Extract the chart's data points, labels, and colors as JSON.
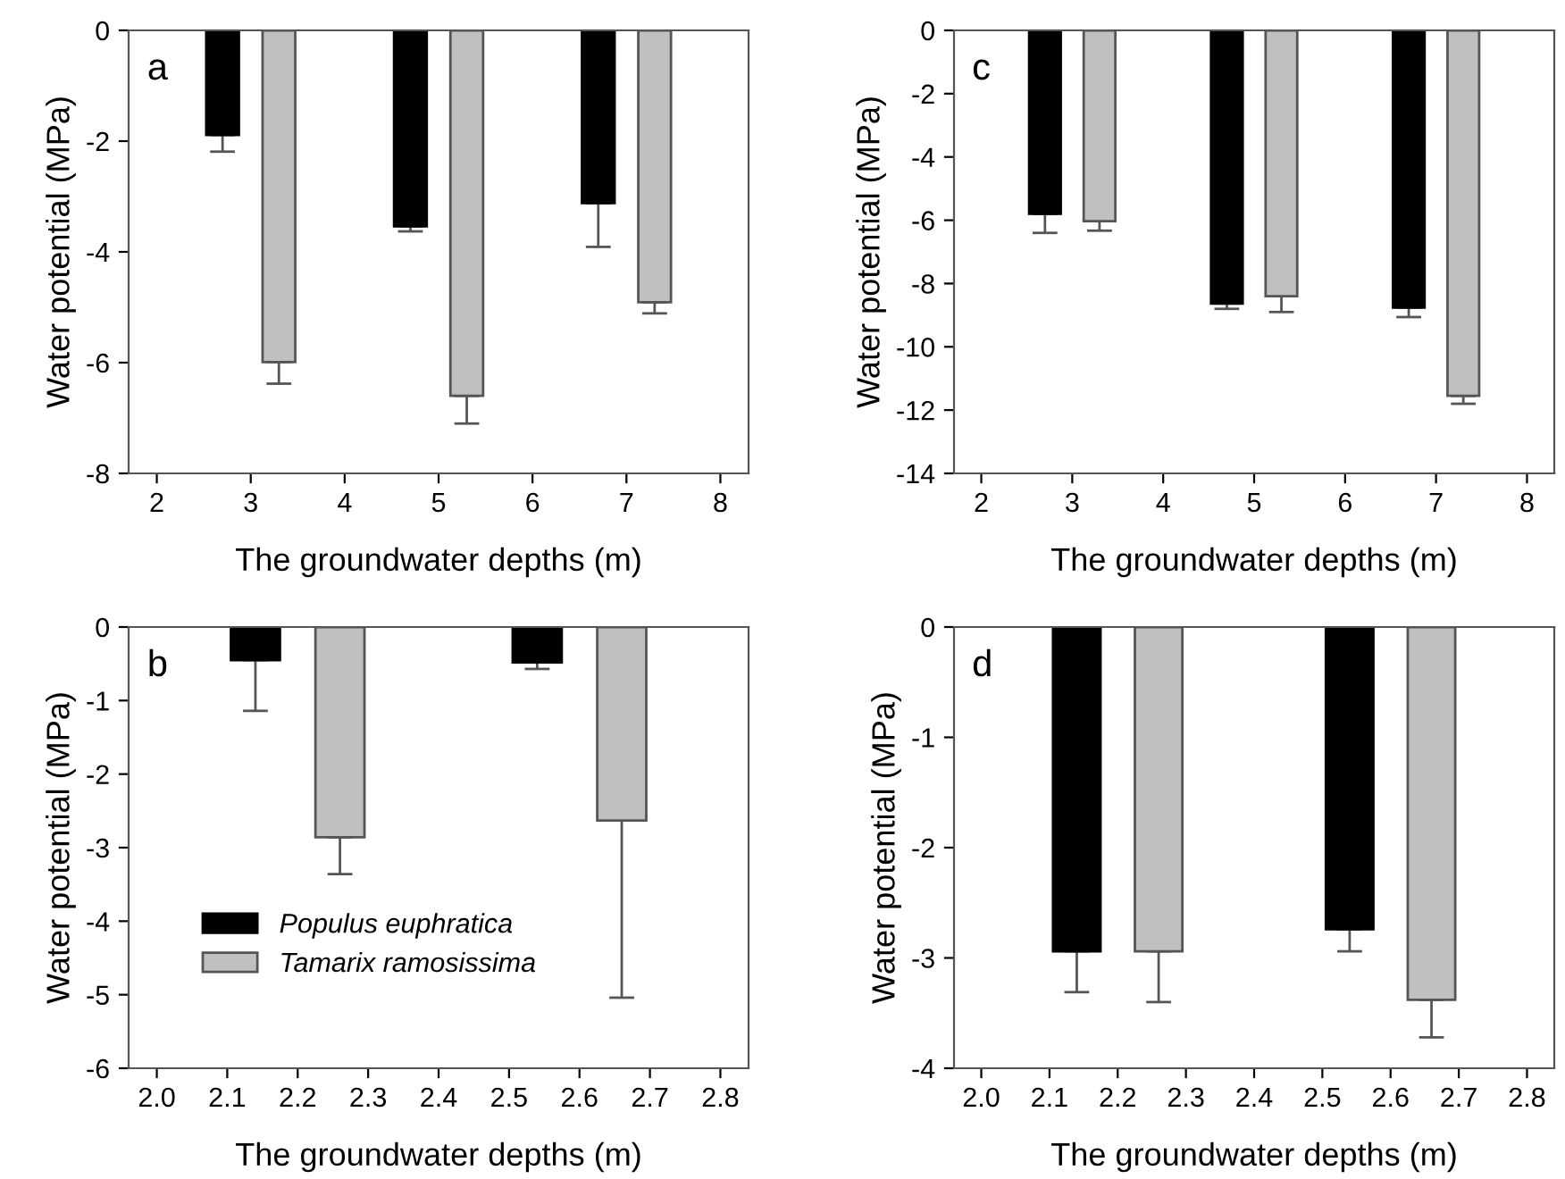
{
  "chart_data": [
    {
      "type": "bar",
      "annotations": [
        "a"
      ],
      "xlabel": "The groundwater depths (m)",
      "ylabel": "Water potential (MPa)",
      "xlim": [
        1.7,
        8.3
      ],
      "xticks": [
        2,
        3,
        4,
        5,
        6,
        7,
        8
      ],
      "ylim": [
        -8,
        0
      ],
      "yticks": [
        0,
        -2,
        -4,
        -6,
        -8
      ],
      "grid": false,
      "legend": false,
      "series": [
        {
          "color": "#000000",
          "x": [
            2.7,
            4.7,
            6.7
          ],
          "values": [
            -1.89,
            -3.54,
            -3.12
          ],
          "errors": [
            [
              -2.19,
              -1.89
            ],
            [
              -3.63,
              -3.54
            ],
            [
              -3.91,
              -3.12
            ]
          ]
        },
        {
          "color": "#c0c0c0",
          "x": [
            3.3,
            5.3,
            7.3
          ],
          "values": [
            -5.99,
            -6.6,
            -4.91
          ],
          "errors": [
            [
              -6.38,
              -5.99
            ],
            [
              -7.1,
              -6.6
            ],
            [
              -5.11,
              -4.91
            ]
          ]
        }
      ]
    },
    {
      "type": "bar",
      "annotations": [
        "c"
      ],
      "xlabel": "The groundwater depths (m)",
      "ylabel": "Water potential (MPa)",
      "xlim": [
        1.7,
        8.3
      ],
      "xticks": [
        2,
        3,
        4,
        5,
        6,
        7,
        8
      ],
      "ylim": [
        -14,
        0
      ],
      "yticks": [
        0,
        -2,
        -4,
        -6,
        -8,
        -10,
        -12,
        -14
      ],
      "grid": false,
      "legend": false,
      "series": [
        {
          "color": "#000000",
          "x": [
            2.7,
            4.7,
            6.7
          ],
          "values": [
            -5.8,
            -8.63,
            -8.76
          ],
          "errors": [
            [
              -6.4,
              -5.8
            ],
            [
              -8.8,
              -8.63
            ],
            [
              -9.06,
              -8.76
            ]
          ]
        },
        {
          "color": "#c0c0c0",
          "x": [
            3.3,
            5.3,
            7.3
          ],
          "values": [
            -6.03,
            -8.4,
            -11.55
          ],
          "errors": [
            [
              -6.33,
              -6.03
            ],
            [
              -8.9,
              -8.4
            ],
            [
              -11.8,
              -11.55
            ]
          ]
        }
      ]
    },
    {
      "type": "bar",
      "annotations": [
        "b"
      ],
      "xlabel": "The groundwater depths (m)",
      "ylabel": "Water potential (MPa)",
      "xlim": [
        1.96,
        2.84
      ],
      "xticks": [
        {
          "value": 2.0,
          "label": "2.0"
        },
        2.1,
        2.2,
        2.3,
        2.4,
        2.5,
        2.6,
        2.7,
        2.8
      ],
      "ylim": [
        -6,
        0
      ],
      "yticks": [
        0,
        -1,
        -2,
        -3,
        -4,
        -5,
        -6
      ],
      "grid": false,
      "legend": "bottom left",
      "series": [
        {
          "name": "Populus euphratica",
          "color": "#000000",
          "x": [
            2.14,
            2.54
          ],
          "values": [
            -0.45,
            -0.48
          ],
          "errors": [
            [
              -1.14,
              -0.45
            ],
            [
              -0.57,
              -0.48
            ]
          ]
        },
        {
          "name": "Tamarix ramosissima",
          "color": "#c0c0c0",
          "x": [
            2.26,
            2.66
          ],
          "values": [
            -2.86,
            -2.63
          ],
          "errors": [
            [
              -3.36,
              -2.86
            ],
            [
              -5.04,
              -2.63
            ]
          ]
        }
      ]
    },
    {
      "type": "bar",
      "annotations": [
        "d"
      ],
      "xlabel": "The groundwater depths (m)",
      "ylabel": "Water potential (MPa)",
      "xlim": [
        1.96,
        2.84
      ],
      "xticks": [
        {
          "value": 2.0,
          "label": "2.0"
        },
        2.1,
        2.2,
        2.3,
        2.4,
        2.5,
        2.6,
        2.7,
        2.8
      ],
      "ylim": [
        -4,
        0
      ],
      "yticks": [
        0,
        -1,
        -2,
        -3,
        -4
      ],
      "grid": false,
      "legend": false,
      "series": [
        {
          "color": "#000000",
          "x": [
            2.14,
            2.54
          ],
          "values": [
            -2.94,
            -2.74
          ],
          "errors": [
            [
              -3.31,
              -2.94
            ],
            [
              -2.94,
              -2.74
            ]
          ]
        },
        {
          "color": "#c0c0c0",
          "x": [
            2.26,
            2.66
          ],
          "values": [
            -2.94,
            -3.38
          ],
          "errors": [
            [
              -3.4,
              -2.94
            ],
            [
              -3.72,
              -3.38
            ]
          ]
        }
      ]
    }
  ]
}
